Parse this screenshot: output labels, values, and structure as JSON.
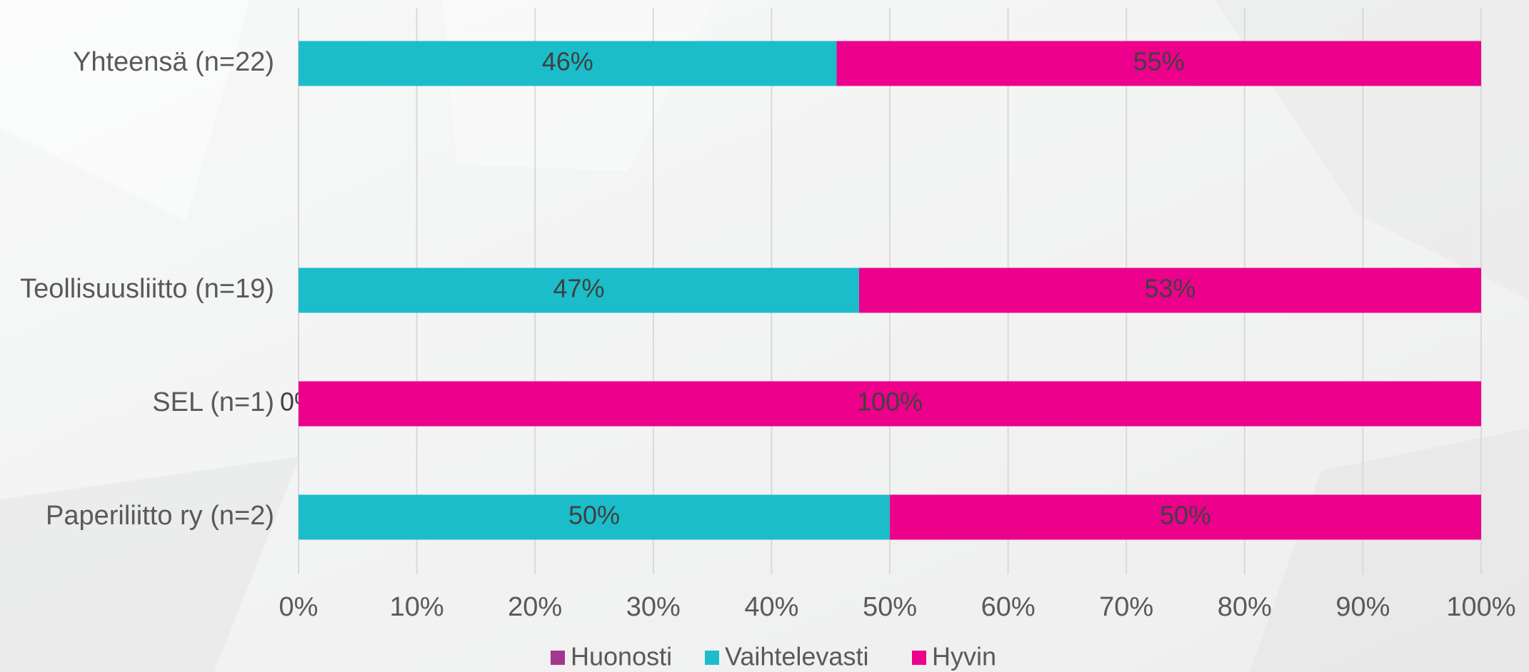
{
  "chart_data": {
    "type": "bar",
    "orientation": "horizontal",
    "stacked": true,
    "categories": [
      "Yhteensä (n=22)",
      null,
      "Teollisuusliitto (n=19)",
      "SEL (n=1)",
      "Paperiliitto ry (n=2)"
    ],
    "series": [
      {
        "name": "Huonosti",
        "color": "#a3368d",
        "values": [
          0,
          null,
          0,
          0,
          0
        ]
      },
      {
        "name": "Vaihtelevasti",
        "color": "#1bbdca",
        "values": [
          45.5,
          null,
          47.4,
          0,
          50
        ],
        "value_labels": [
          "46%",
          null,
          "47%",
          "0%",
          "50%"
        ]
      },
      {
        "name": "Hyvin",
        "color": "#ec008c",
        "values": [
          54.5,
          null,
          52.6,
          100,
          50
        ],
        "value_labels": [
          "55%",
          null,
          "53%",
          "100%",
          "50%"
        ]
      }
    ],
    "xlim": [
      0,
      100
    ],
    "xticks": [
      {
        "value": 0,
        "label": "0%"
      },
      {
        "value": 10,
        "label": "10%"
      },
      {
        "value": 20,
        "label": "20%"
      },
      {
        "value": 30,
        "label": "30%"
      },
      {
        "value": 40,
        "label": "40%"
      },
      {
        "value": 50,
        "label": "50%"
      },
      {
        "value": 60,
        "label": "60%"
      },
      {
        "value": 70,
        "label": "70%"
      },
      {
        "value": 80,
        "label": "80%"
      },
      {
        "value": 90,
        "label": "90%"
      },
      {
        "value": 100,
        "label": "100%"
      }
    ],
    "grid": true,
    "legend": "bottom"
  }
}
